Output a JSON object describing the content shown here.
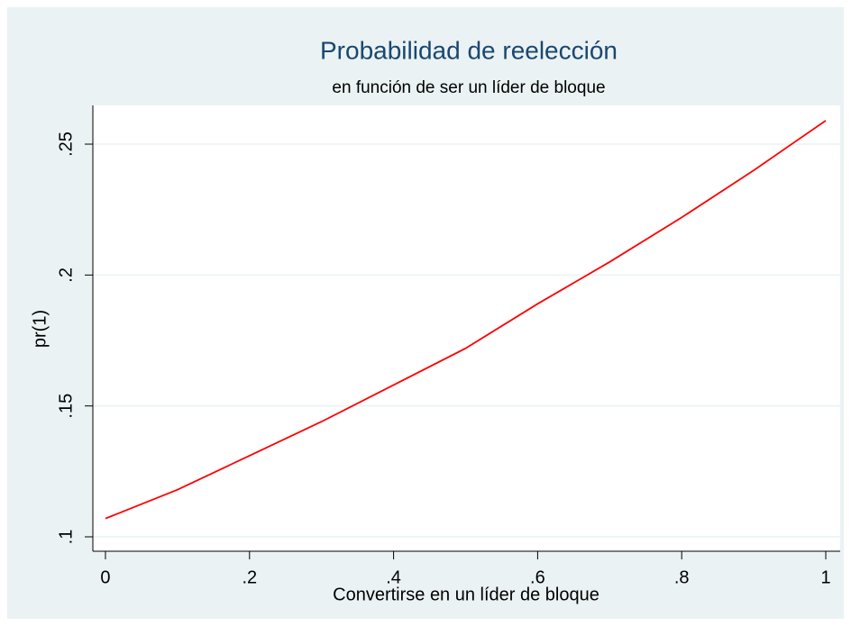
{
  "chart_data": {
    "type": "line",
    "title": "Probabilidad de reelección",
    "subtitle": "en función de ser un líder de bloque",
    "x_label": "Convertirse en un líder de bloque",
    "y_label": "pr(1)",
    "x": [
      0,
      0.1,
      0.2,
      0.3,
      0.4,
      0.5,
      0.6,
      0.7,
      0.8,
      0.9,
      1
    ],
    "series": [
      {
        "name": "pr(1)",
        "color": "#ff0000",
        "values": [
          0.107,
          0.118,
          0.131,
          0.144,
          0.158,
          0.172,
          0.189,
          0.205,
          0.222,
          0.24,
          0.259
        ]
      }
    ],
    "xlim": [
      -0.0175,
      1.02
    ],
    "ylim": [
      0.0945,
      0.2648
    ],
    "xticks": [
      0,
      {
        "value": 0.2,
        "label": ".2"
      },
      {
        "value": 0.4,
        "label": ".4"
      },
      {
        "value": 0.6,
        "label": ".6"
      },
      {
        "value": 0.8,
        "label": ".8"
      },
      1
    ],
    "yticks": [
      {
        "value": 0.1,
        "label": ".1"
      },
      {
        "value": 0.15,
        "label": ".15"
      },
      {
        "value": 0.2,
        "label": ".2"
      },
      {
        "value": 0.25,
        "label": ".25"
      }
    ],
    "grid": true
  }
}
